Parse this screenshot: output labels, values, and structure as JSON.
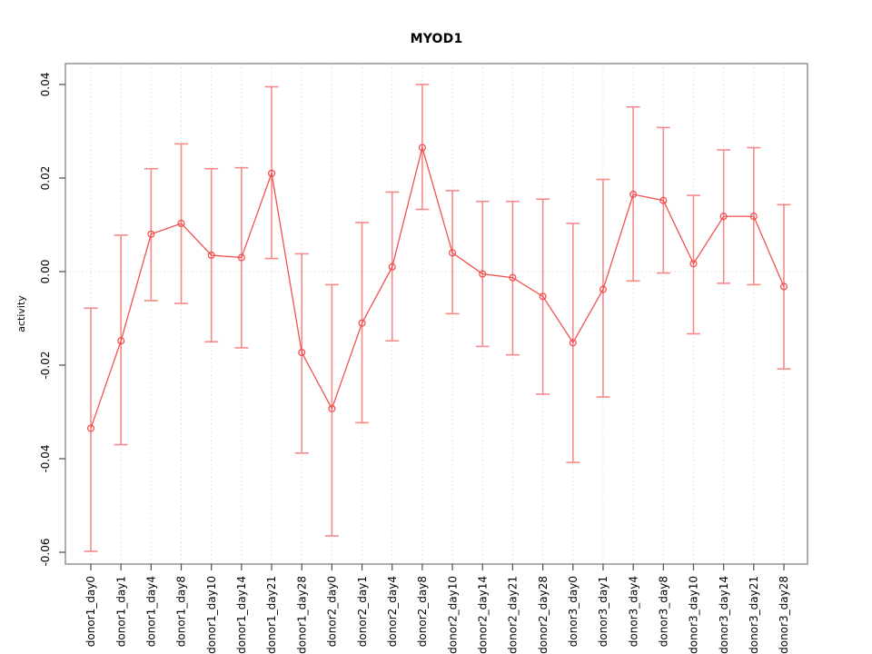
{
  "chart_data": {
    "type": "line",
    "title": "MYOD1",
    "xlabel": "",
    "ylabel": "activity",
    "legend": "none",
    "grid": "vertical dotted gridline per category; dotted horizontal line at y=0",
    "ylim": [
      -0.0625,
      0.0445
    ],
    "yticks": [
      "0.04",
      "0.02",
      "0.00",
      "-0.02",
      "-0.04",
      "-0.06"
    ],
    "point_style": "open-circle",
    "line_color": "#f05252",
    "errbar_color": "#f58a8a",
    "axis_box_color": "#8a8a8a",
    "tick_color": "#4d4d4d",
    "grid_color": "#dcdcdc",
    "categories": [
      "donor1_day0",
      "donor1_day1",
      "donor1_day4",
      "donor1_day8",
      "donor1_day10",
      "donor1_day14",
      "donor1_day21",
      "donor1_day28",
      "donor2_day0",
      "donor2_day1",
      "donor2_day4",
      "donor2_day8",
      "donor2_day10",
      "donor2_day14",
      "donor2_day21",
      "donor2_day28",
      "donor3_day0",
      "donor3_day1",
      "donor3_day4",
      "donor3_day8",
      "donor3_day10",
      "donor3_day14",
      "donor3_day21",
      "donor3_day28"
    ],
    "series": [
      {
        "name": "activity",
        "values": [
          -0.0335,
          -0.0148,
          0.008,
          0.0103,
          0.0035,
          0.003,
          0.021,
          -0.0173,
          -0.0293,
          -0.011,
          0.001,
          0.0265,
          0.004,
          -0.0005,
          -0.0013,
          -0.0053,
          -0.0152,
          -0.0038,
          0.0165,
          0.0152,
          0.0017,
          0.0118,
          0.0118,
          -0.0032
        ],
        "err_low": [
          -0.0598,
          -0.037,
          -0.0062,
          -0.0068,
          -0.015,
          -0.0163,
          0.0028,
          -0.0388,
          -0.0565,
          -0.0323,
          -0.0148,
          0.0133,
          -0.009,
          -0.016,
          -0.0178,
          -0.0262,
          -0.0408,
          -0.0268,
          -0.002,
          -0.0003,
          -0.0133,
          -0.0025,
          -0.0028,
          -0.0208
        ],
        "err_high": [
          -0.0078,
          0.0078,
          0.022,
          0.0273,
          0.022,
          0.0222,
          0.0395,
          0.0038,
          -0.0028,
          0.0105,
          0.017,
          0.04,
          0.0173,
          0.015,
          0.015,
          0.0155,
          0.0103,
          0.0197,
          0.0352,
          0.0308,
          0.0163,
          0.026,
          0.0265,
          0.0143
        ]
      }
    ]
  }
}
